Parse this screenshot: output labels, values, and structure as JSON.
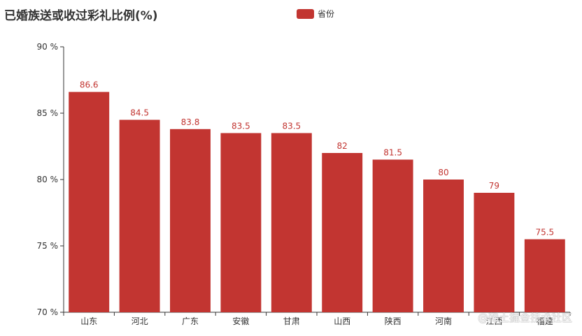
{
  "chart_data": {
    "type": "bar",
    "title": "已婚族送或收过彩礼比例(%)",
    "legend": "省份",
    "legend_position": "top",
    "categories": [
      "山东",
      "河北",
      "广东",
      "安徽",
      "甘肃",
      "山西",
      "陕西",
      "河南",
      "江西",
      "福建"
    ],
    "values": [
      86.6,
      84.5,
      83.8,
      83.5,
      83.5,
      82,
      81.5,
      80,
      79,
      75.5
    ],
    "ylim": [
      70,
      90
    ],
    "yticks": [
      70,
      75,
      80,
      85,
      90
    ],
    "y_tick_suffix": " %",
    "grid": false,
    "color": "#c23531"
  },
  "watermark": "@稀土掘金技术社区"
}
